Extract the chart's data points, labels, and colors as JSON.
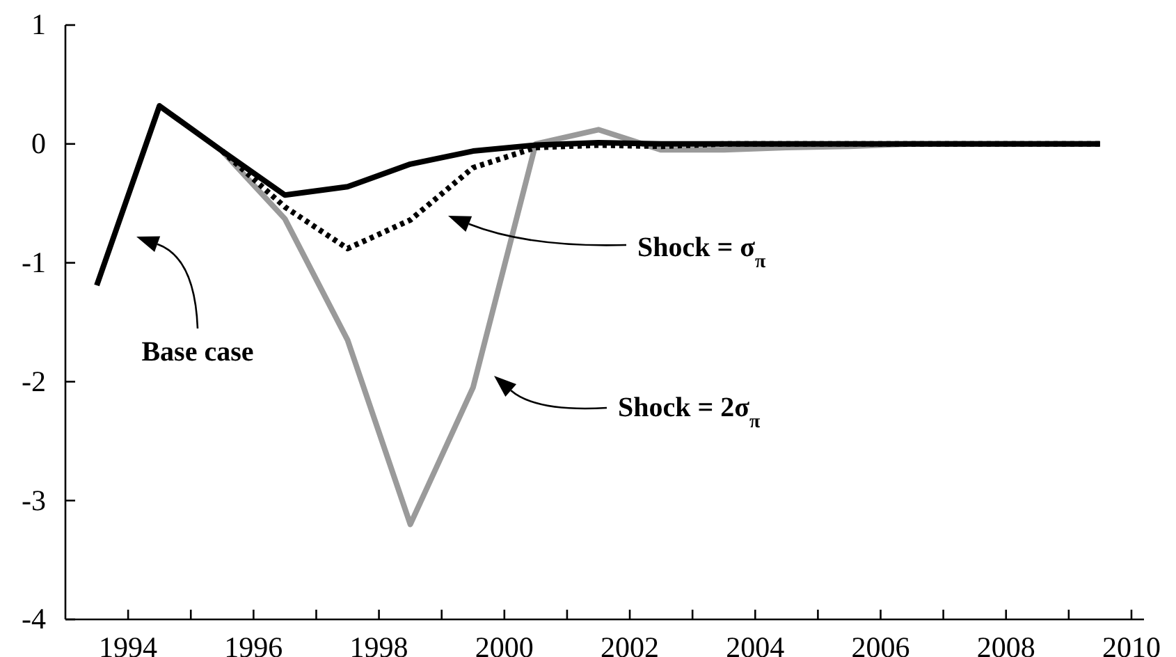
{
  "chart_data": {
    "type": "line",
    "x": [
      1993.5,
      1994.5,
      1995.5,
      1996.5,
      1997.5,
      1998.5,
      1999.5,
      2000.5,
      2001.5,
      2002.5,
      2003.5,
      2004.5,
      2005.5,
      2006.5,
      2007.5,
      2008.5,
      2009.5
    ],
    "series": [
      {
        "color": "#000000",
        "line_style": "solid",
        "values": [
          -1.19,
          0.32,
          -0.06,
          -0.43,
          -0.36,
          -0.17,
          -0.06,
          -0.01,
          0.01,
          0,
          0,
          0,
          0,
          0,
          0,
          0,
          0
        ]
      },
      {
        "color": "#000000",
        "line_style": "dotted",
        "values": [
          null,
          null,
          -0.06,
          -0.53,
          -0.88,
          -0.64,
          -0.2,
          -0.03,
          -0.01,
          -0.02,
          0,
          0,
          0,
          0,
          0,
          0,
          0
        ]
      },
      {
        "color": "#9a9a9a",
        "line_style": "solid",
        "values": [
          null,
          null,
          -0.06,
          -0.63,
          -1.65,
          -3.2,
          -2.05,
          0,
          0.12,
          -0.05,
          -0.05,
          -0.03,
          -0.02,
          0,
          0,
          0,
          0
        ]
      }
    ],
    "xlim": [
      1993,
      2010.2
    ],
    "xticks": [
      1994,
      {
        "value": 1995,
        "label": null
      },
      1996,
      {
        "value": 1997,
        "label": null
      },
      1998,
      {
        "value": 1999,
        "label": null
      },
      2000,
      {
        "value": 2001,
        "label": null
      },
      2002,
      {
        "value": 2003,
        "label": null
      },
      2004,
      {
        "value": 2005,
        "label": null
      },
      2006,
      {
        "value": 2007,
        "label": null
      },
      2008,
      {
        "value": 2009,
        "label": null
      },
      2010
    ],
    "ylim": [
      -4,
      1
    ],
    "yticks": [
      -4,
      -3,
      -2,
      -1,
      0,
      1
    ],
    "annotations": [
      "Base case",
      "Shock = σ$_{π}$",
      "Shock = 2σ$_{π}$"
    ]
  }
}
